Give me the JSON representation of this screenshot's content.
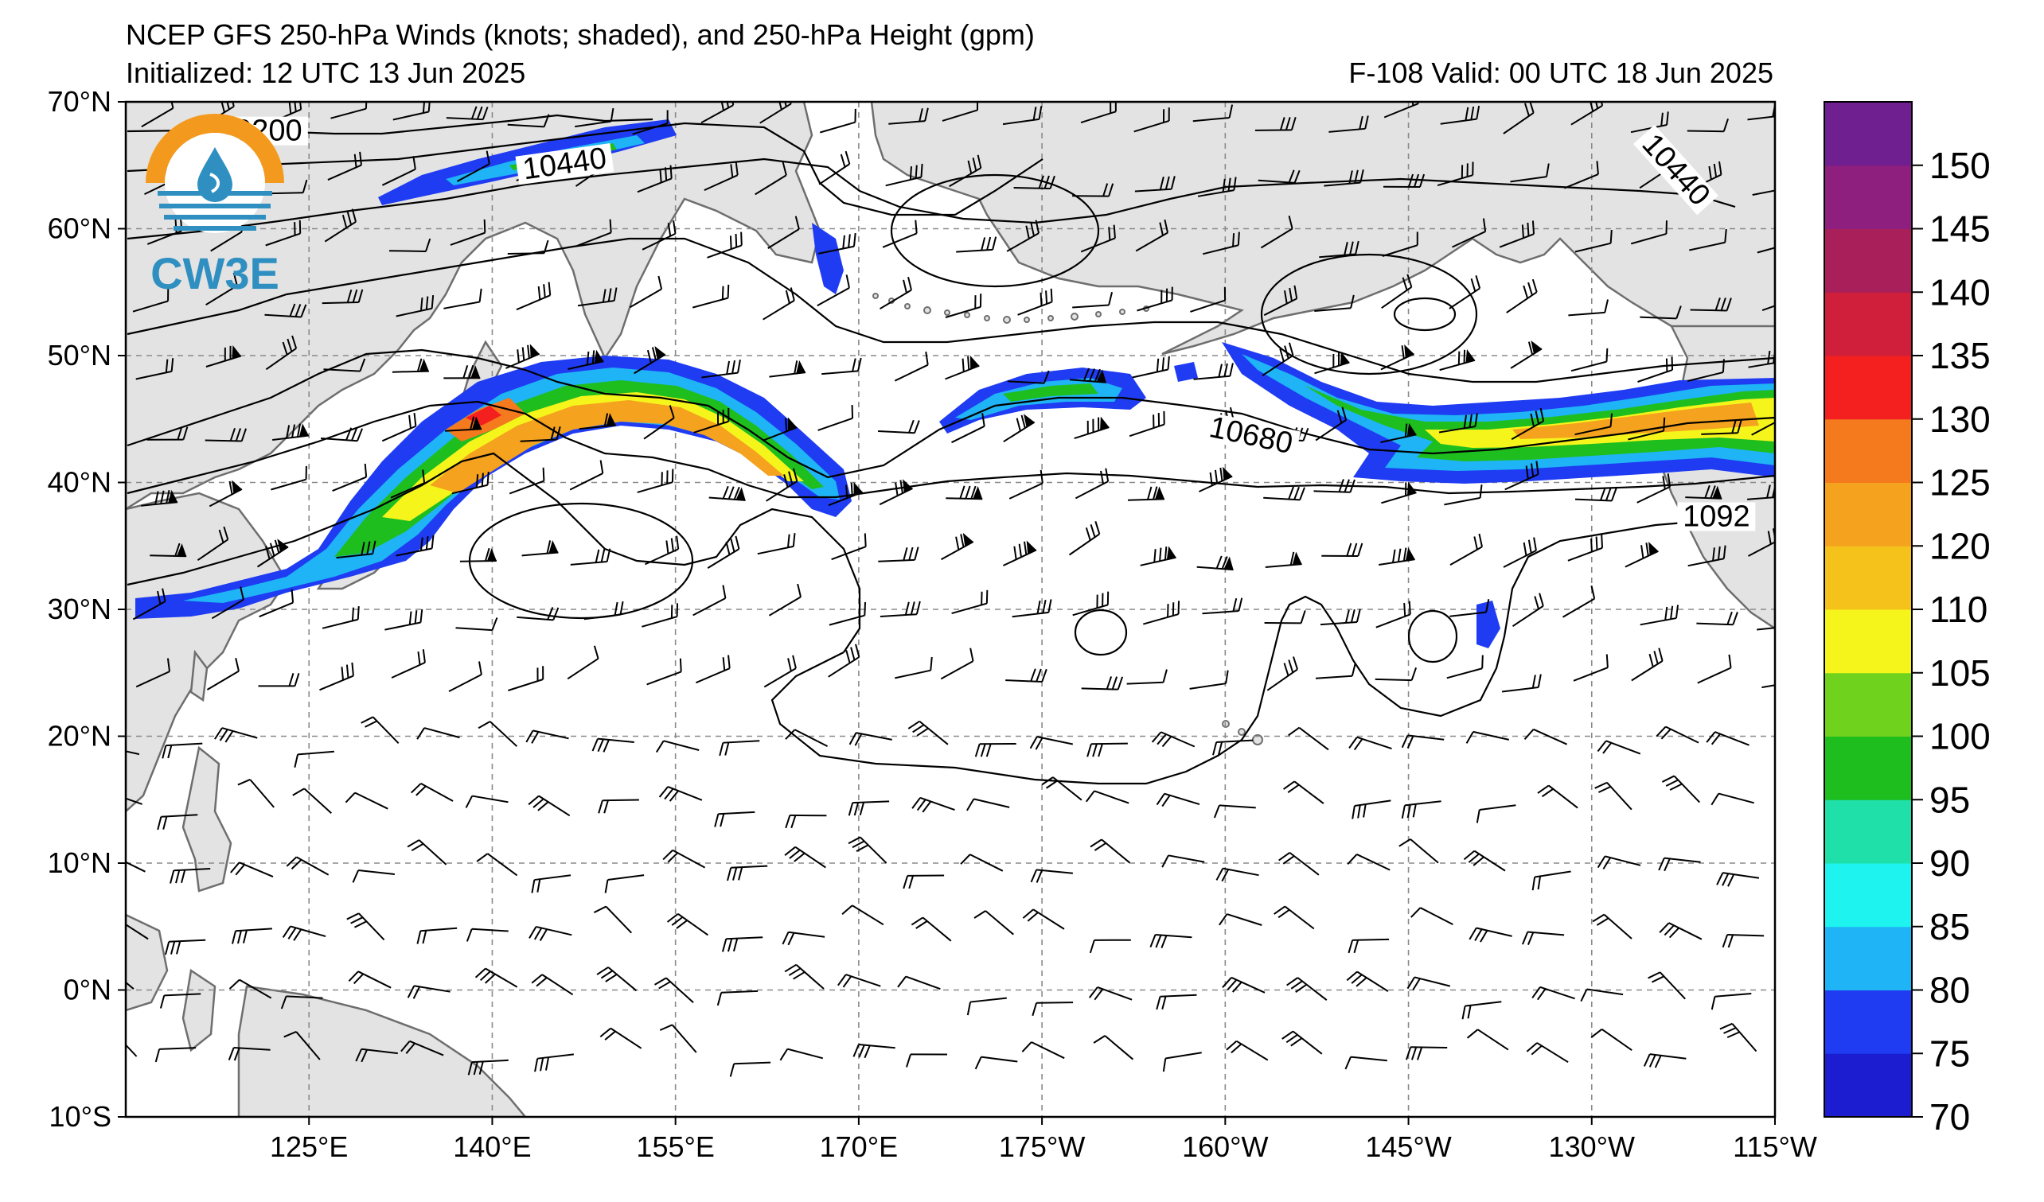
{
  "header": {
    "title": "NCEP GFS 250-hPa Winds (knots; shaded), and 250-hPa Height (gpm)",
    "initialized": "Initialized: 12 UTC 13 Jun 2025",
    "valid": "F-108  Valid: 00 UTC 18 Jun 2025"
  },
  "logo": {
    "text": "CW3E",
    "color": "#2f8fc1",
    "ring_color": "#f39a1e"
  },
  "map": {
    "lon_range": [
      110,
      245
    ],
    "lat_range": [
      -10,
      70
    ],
    "x_ticks": [
      {
        "lon": 125,
        "label": "125°E"
      },
      {
        "lon": 140,
        "label": "140°E"
      },
      {
        "lon": 155,
        "label": "155°E"
      },
      {
        "lon": 170,
        "label": "170°E"
      },
      {
        "lon": 185,
        "label": "175°W"
      },
      {
        "lon": 200,
        "label": "160°W"
      },
      {
        "lon": 215,
        "label": "145°W"
      },
      {
        "lon": 230,
        "label": "130°W"
      },
      {
        "lon": 245,
        "label": "115°W"
      }
    ],
    "y_ticks": [
      {
        "lat": 70,
        "label": "70°N"
      },
      {
        "lat": 60,
        "label": "60°N"
      },
      {
        "lat": 50,
        "label": "50°N"
      },
      {
        "lat": 40,
        "label": "40°N"
      },
      {
        "lat": 30,
        "label": "30°N"
      },
      {
        "lat": 20,
        "label": "20°N"
      },
      {
        "lat": 10,
        "label": "10°N"
      },
      {
        "lat": 0,
        "label": "0°N"
      },
      {
        "lat": -10,
        "label": "10°S"
      }
    ],
    "land_color": "#e3e3e3",
    "coast_color": "#6e6e6e"
  },
  "contour_labels": [
    {
      "text": "10200",
      "lon": 121,
      "lat": 67.2,
      "rot": 0
    },
    {
      "text": "10440",
      "lon": 146,
      "lat": 64.6,
      "rot": -8
    },
    {
      "text": "10440",
      "lon": 236.5,
      "lat": 64.3,
      "rot": 48
    },
    {
      "text": "10680",
      "lon": 202,
      "lat": 43.2,
      "rot": 12
    },
    {
      "text": "1092",
      "lon": 240.2,
      "lat": 36.8,
      "rot": 0
    }
  ],
  "colorbar": {
    "colors": [
      "#1c1cd0",
      "#1f3cf3",
      "#1fb4f5",
      "#1ef3f0",
      "#1ee0a8",
      "#1fbe1f",
      "#6fd21c",
      "#f5f51c",
      "#f5c21c",
      "#f5a21e",
      "#f57a1e",
      "#f41f1f",
      "#cf1f3a",
      "#a81f5a",
      "#8e1f7e",
      "#6f1f90"
    ],
    "tick_labels": [
      "70",
      "75",
      "80",
      "85",
      "90",
      "95",
      "100",
      "105",
      "110",
      "120",
      "125",
      "130",
      "135",
      "140",
      "145",
      "150"
    ]
  }
}
